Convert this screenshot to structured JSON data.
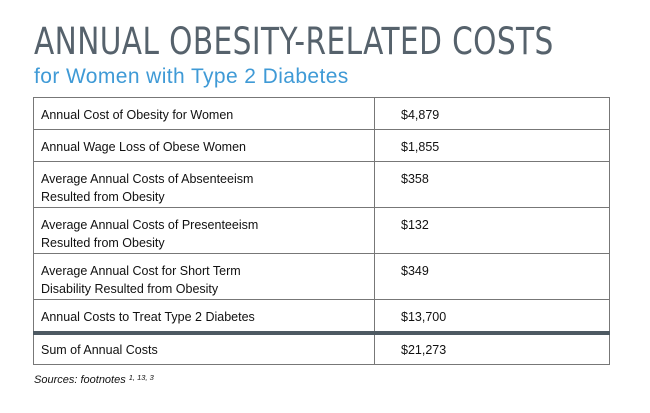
{
  "title": "ANNUAL OBESITY-RELATED COSTS",
  "subtitle": "for Women with Type 2 Diabetes",
  "rows": [
    {
      "label_line1": "Annual Cost of Obesity for Women",
      "label_line2": "",
      "value": "$4,879"
    },
    {
      "label_line1": "Annual Wage Loss of Obese Women",
      "label_line2": "",
      "value": "$1,855"
    },
    {
      "label_line1": "Average Annual Costs of Absenteeism",
      "label_line2": "Resulted from Obesity",
      "value": "$358"
    },
    {
      "label_line1": "Average Annual Costs of Presenteeism",
      "label_line2": "Resulted from Obesity",
      "value": "$132"
    },
    {
      "label_line1": "Average Annual Cost for Short Term",
      "label_line2": "Disability Resulted from Obesity",
      "value": "$349"
    },
    {
      "label_line1": "Annual Costs to Treat Type 2 Diabetes",
      "label_line2": "",
      "value": "$13,700"
    }
  ],
  "total": {
    "label": "Sum of Annual Costs",
    "value": "$21,273"
  },
  "sources": {
    "text": "Sources: footnotes",
    "refs": "1, 13, 3"
  },
  "colors": {
    "title": "#56626c",
    "subtitle": "#3f9ad6",
    "total_rule": "#4d5962",
    "border": "#777777"
  }
}
